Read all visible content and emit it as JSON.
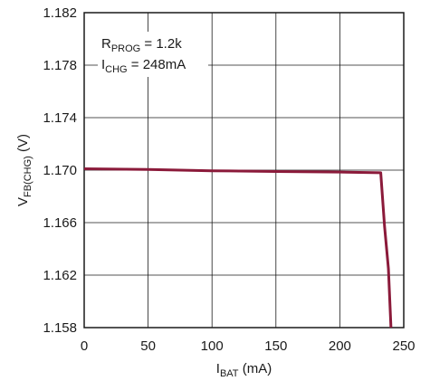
{
  "chart_data": {
    "type": "line",
    "xlabel": {
      "main": "I",
      "sub": "BAT",
      "rest": " (mA)"
    },
    "ylabel": {
      "main": "V",
      "sub": "FB(CHG)",
      "rest": " (V)"
    },
    "xlim": [
      0,
      250
    ],
    "ylim": [
      1.158,
      1.182
    ],
    "x_ticks": [
      "0",
      "50",
      "100",
      "150",
      "200",
      "250"
    ],
    "y_ticks": [
      "1.158",
      "1.162",
      "1.166",
      "1.170",
      "1.174",
      "1.178",
      "1.182"
    ],
    "grid": true,
    "annotations": [
      {
        "main": "R",
        "sub": "PROG",
        "rest": " = 1.2k"
      },
      {
        "main": "I",
        "sub": "CHG",
        "rest": " = 248mA"
      }
    ],
    "series": [
      {
        "color": "#8b1a3a",
        "x": [
          0,
          50,
          100,
          150,
          200,
          232,
          235,
          238,
          240
        ],
        "y": [
          1.1701,
          1.17005,
          1.16995,
          1.1699,
          1.16985,
          1.1698,
          1.1657,
          1.1625,
          1.158
        ]
      }
    ]
  }
}
